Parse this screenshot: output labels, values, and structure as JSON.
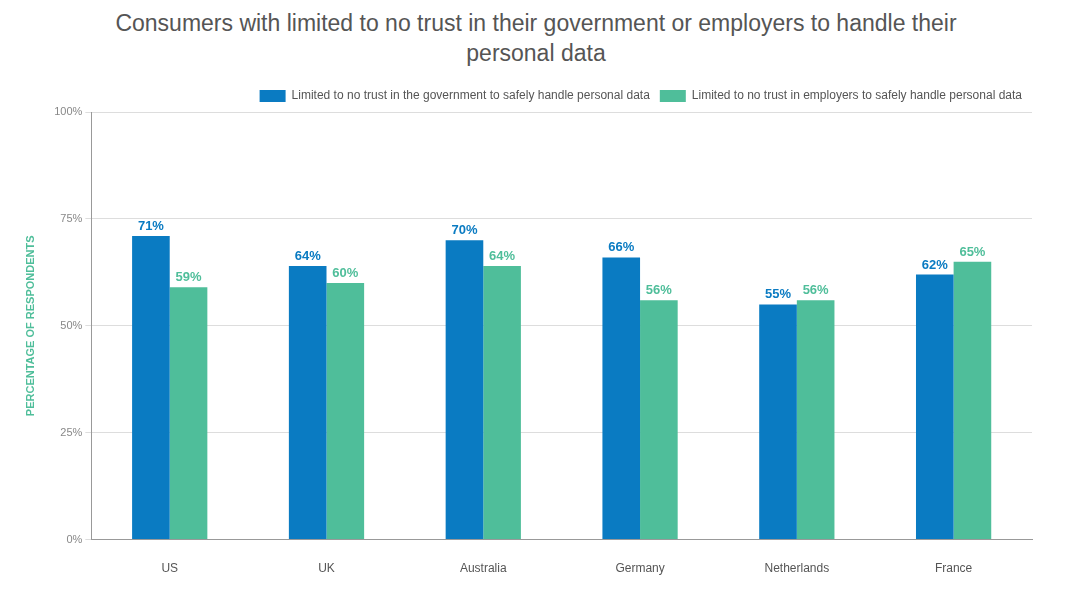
{
  "chart_data": {
    "type": "bar",
    "title": "Consumers with limited to no trust in their government or employers to handle their personal data",
    "y_label": "PERCENTAGE OF RESPONDENTS",
    "categories": [
      "US",
      "UK",
      "Australia",
      "Germany",
      "Netherlands",
      "France"
    ],
    "series": [
      {
        "name": "Limited to no trust in the government to safely handle personal data",
        "color": "#0a7bc2",
        "values": [
          71,
          64,
          70,
          66,
          55,
          62
        ],
        "value_labels": [
          "71%",
          "64%",
          "70%",
          "66%",
          "55%",
          "62%"
        ]
      },
      {
        "name": "Limited to no trust in employers to safely handle personal data",
        "color": "#4fbe9a",
        "values": [
          59,
          60,
          64,
          56,
          56,
          65
        ],
        "value_labels": [
          "59%",
          "60%",
          "64%",
          "56%",
          "56%",
          "65%"
        ]
      }
    ],
    "ylim": [
      0,
      100
    ],
    "yticks": [
      {
        "value": 0,
        "label": "0%"
      },
      {
        "value": 25,
        "label": "25%"
      },
      {
        "value": 50,
        "label": "50%"
      },
      {
        "value": 75,
        "label": "75%"
      },
      {
        "value": 100,
        "label": "100%"
      }
    ],
    "grid": true,
    "legend": "top-right",
    "data_labels": true
  }
}
